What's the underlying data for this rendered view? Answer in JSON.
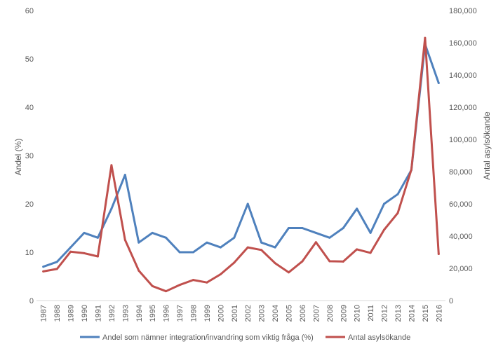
{
  "chart_data": {
    "type": "line",
    "title": "",
    "x": [
      "1987",
      "1988",
      "1989",
      "1990",
      "1991",
      "1992",
      "1993",
      "1994",
      "1995",
      "1996",
      "1997",
      "1998",
      "1999",
      "2000",
      "2001",
      "2002",
      "2003",
      "2004",
      "2005",
      "2006",
      "2007",
      "2008",
      "2009",
      "2010",
      "2011",
      "2012",
      "2013",
      "2014",
      "2015",
      "2016"
    ],
    "series": [
      {
        "name": "Andel som nämner integration/invandring som viktig fråga (%)",
        "axis": "left",
        "color": "#4F81BD",
        "values": [
          7,
          8,
          11,
          14,
          13,
          19,
          26,
          12,
          14,
          13,
          10,
          10,
          12,
          11,
          13,
          20,
          12,
          11,
          15,
          15,
          14,
          13,
          15,
          19,
          14,
          20,
          22,
          27,
          53,
          45
        ]
      },
      {
        "name": "Antal asylsökande",
        "axis": "right",
        "color": "#C0504D",
        "values": [
          18100,
          19600,
          30300,
          29400,
          27400,
          84000,
          37600,
          18600,
          9000,
          5800,
          9700,
          12800,
          11200,
          16300,
          23500,
          33000,
          31400,
          23200,
          17500,
          24300,
          36200,
          24400,
          24200,
          31800,
          29600,
          43900,
          54300,
          81300,
          163000,
          28900
        ]
      }
    ],
    "ylabel_left": "Andel (%)",
    "ylabel_right": "Antal asylsökande",
    "ylim_left": [
      0,
      60
    ],
    "yticks_left": [
      "0",
      "10",
      "20",
      "30",
      "40",
      "50",
      "60"
    ],
    "ylim_right": [
      0,
      180000
    ],
    "yticks_right": [
      "0",
      "20,000",
      "40,000",
      "60,000",
      "80,000",
      "100,000",
      "120,000",
      "140,000",
      "160,000",
      "180,000"
    ],
    "grid": false,
    "legend": "bottom"
  }
}
